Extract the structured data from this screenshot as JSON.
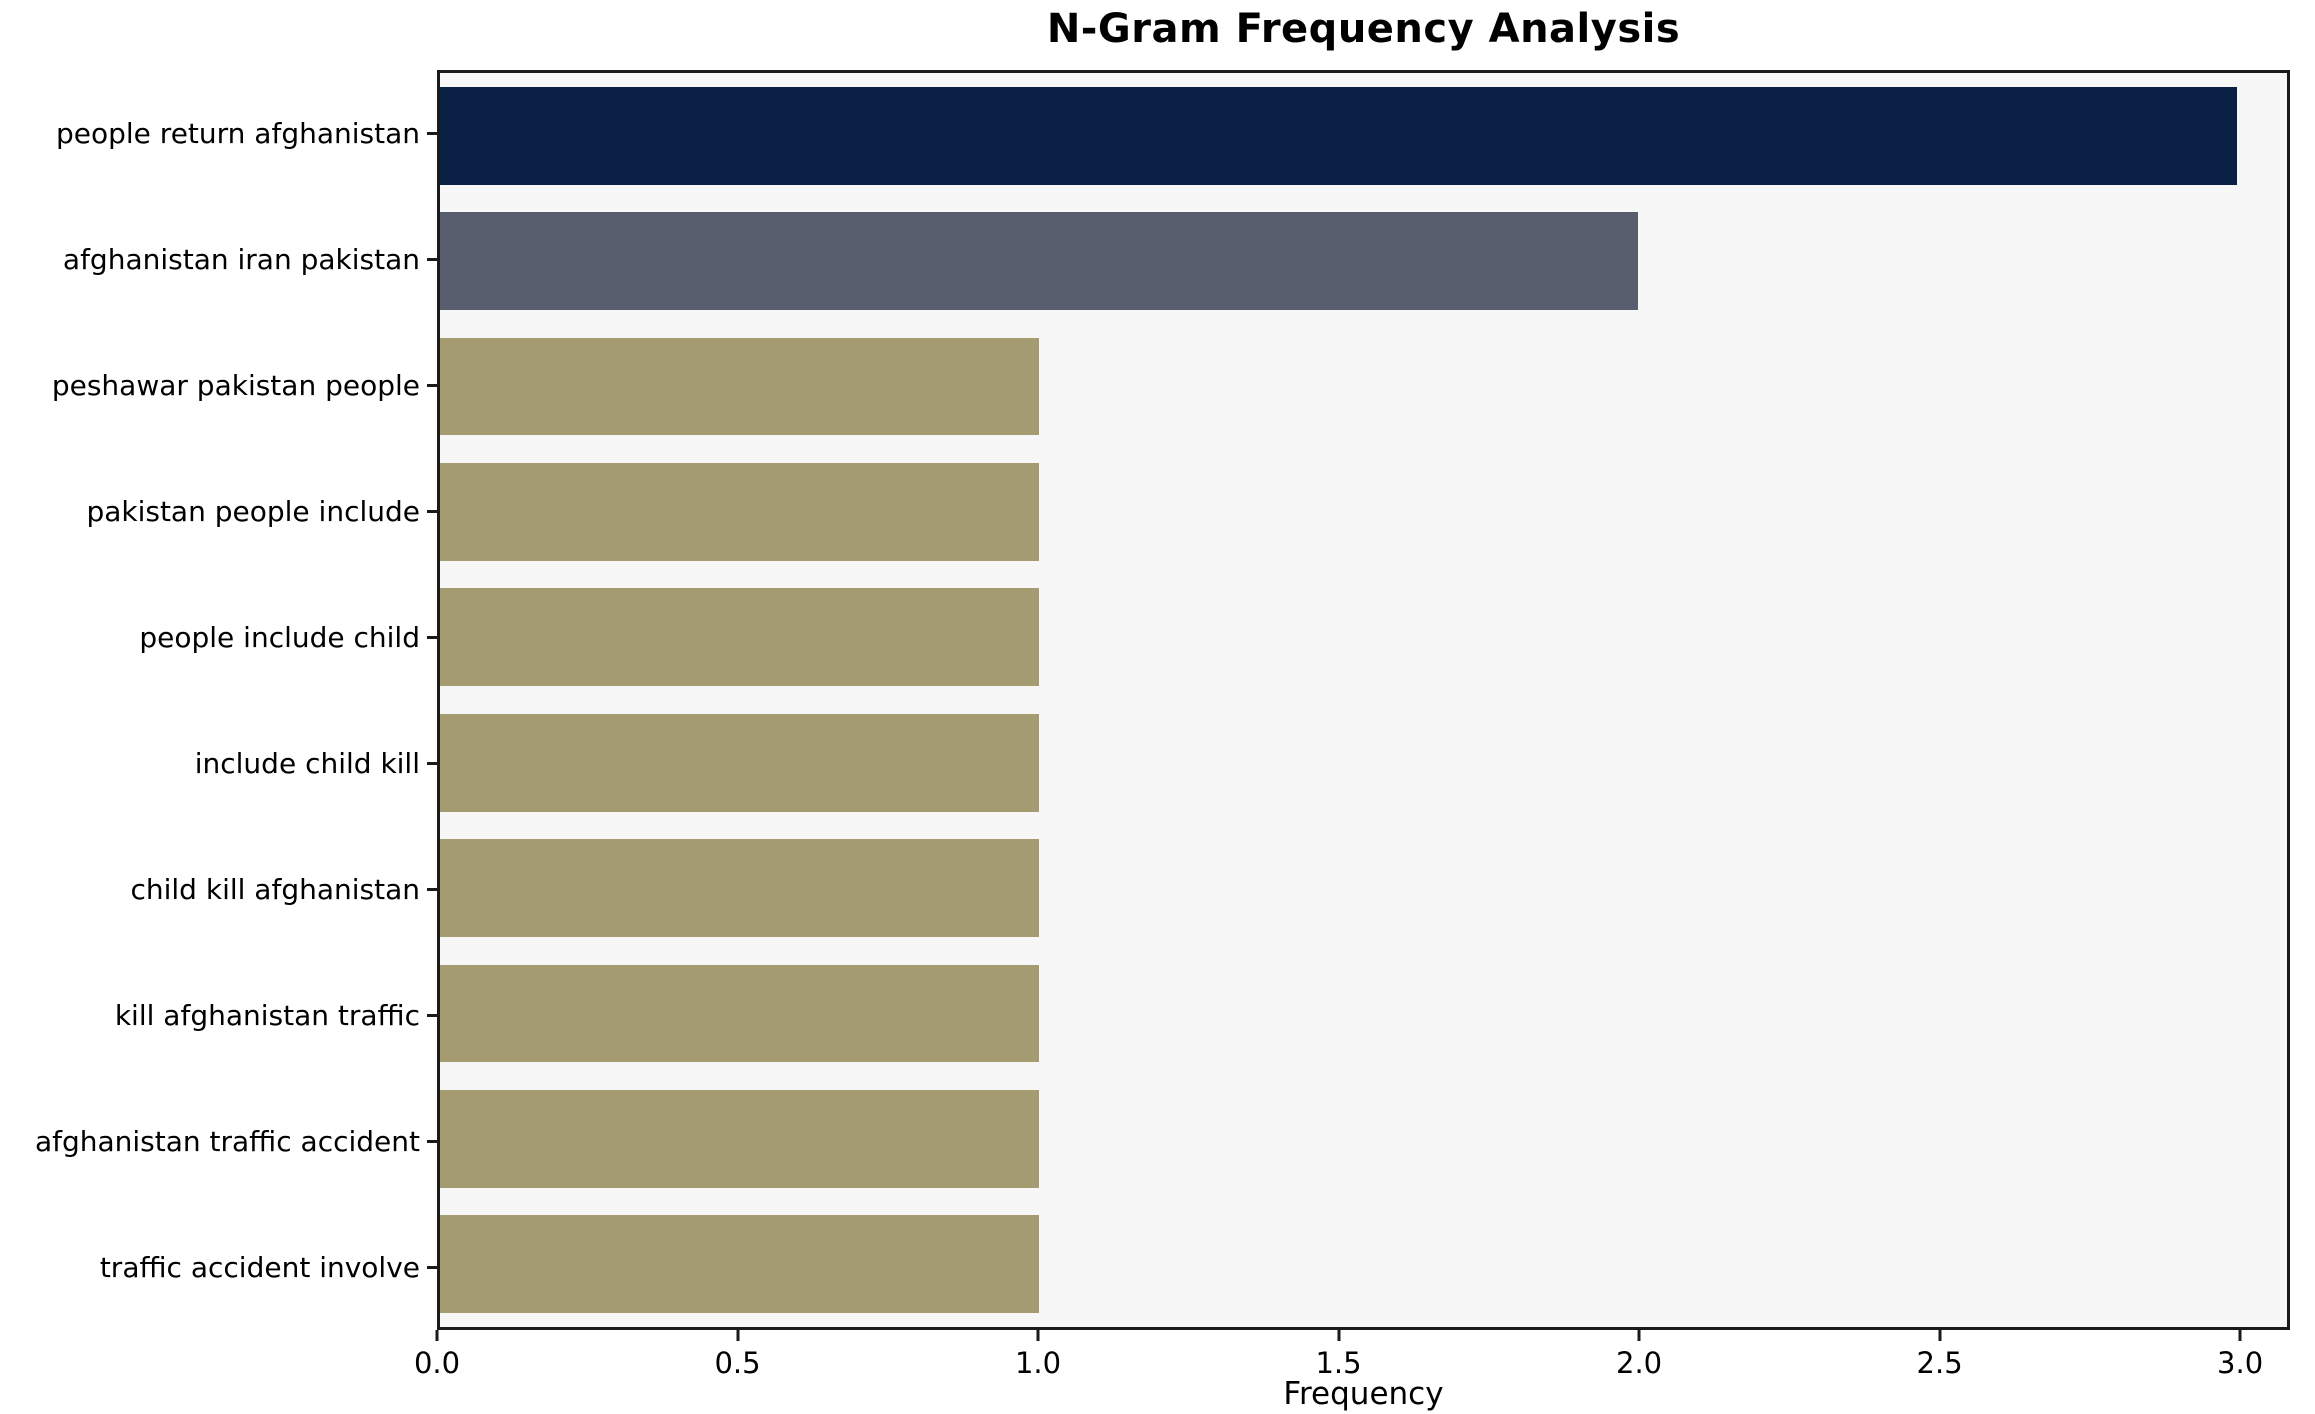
{
  "chart_data": {
    "type": "bar",
    "orientation": "horizontal",
    "title": "N-Gram Frequency Analysis",
    "xlabel": "Frequency",
    "ylabel": "",
    "categories": [
      "people return afghanistan",
      "afghanistan iran pakistan",
      "peshawar pakistan people",
      "pakistan people include",
      "people include child",
      "include child kill",
      "child kill afghanistan",
      "kill afghanistan traffic",
      "afghanistan traffic accident",
      "traffic accident involve"
    ],
    "values": [
      3,
      2,
      1,
      1,
      1,
      1,
      1,
      1,
      1,
      1
    ],
    "xlim": [
      0,
      3.083
    ],
    "x_ticks": [
      0.0,
      0.5,
      1.0,
      1.5,
      2.0,
      2.5,
      3.0
    ],
    "x_tick_labels": [
      "0.0",
      "0.5",
      "1.0",
      "1.5",
      "2.0",
      "2.5",
      "3.0"
    ],
    "bar_colors": [
      "#0b2045",
      "#575d6d",
      "#a49b70",
      "#a49b70",
      "#a49b70",
      "#a49b70",
      "#a49b70",
      "#a49b70",
      "#a49b70",
      "#a49b70"
    ],
    "plot_background": "#f7f7f7",
    "figure_background": "#ffffff",
    "axis_border_color": "#1a1a1a",
    "grid": false,
    "legend": null
  }
}
